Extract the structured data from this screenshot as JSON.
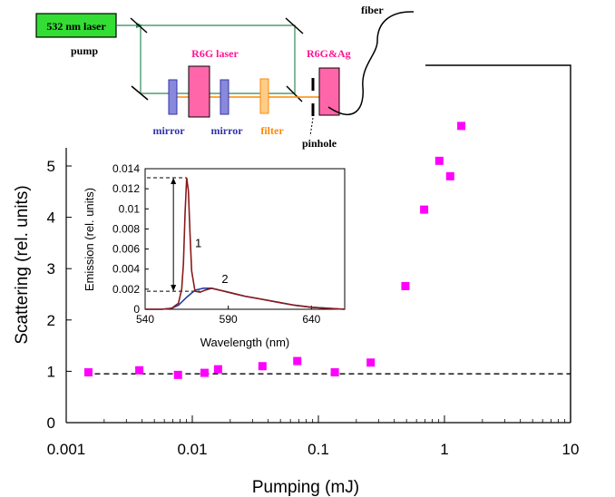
{
  "chart_data": [
    {
      "type": "scatter",
      "title": "",
      "xlabel": "Pumping (mJ)",
      "ylabel": "Scattering (rel. units)",
      "x_scale": "log",
      "xlim": [
        0.001,
        10
      ],
      "ylim": [
        0,
        6
      ],
      "x_tick_labels": [
        "0.001",
        "0.01",
        "0.1",
        "1",
        "10"
      ],
      "y_tick_labels": [
        "0",
        "1",
        "2",
        "3",
        "4",
        "5"
      ],
      "series": [
        {
          "color": "#ff00ff",
          "x": [
            0.0015,
            0.0038,
            0.0077,
            0.0125,
            0.016,
            0.036,
            0.068,
            0.135,
            0.26,
            0.49,
            0.69,
            0.91,
            1.11,
            1.36
          ],
          "y": [
            0.98,
            1.02,
            0.93,
            0.97,
            1.04,
            1.1,
            1.2,
            0.98,
            1.17,
            2.66,
            4.15,
            5.1,
            4.8,
            5.78
          ]
        }
      ],
      "reference_line": {
        "y": 0.95,
        "style": "dashed",
        "color": "#000000"
      },
      "grid": false
    },
    {
      "type": "line",
      "title": "",
      "xlabel": "Wavelength (nm)",
      "ylabel": "Emission (rel. units)",
      "xlim": [
        540,
        660
      ],
      "ylim": [
        0,
        0.014
      ],
      "x_tick_labels": [
        "540",
        "590",
        "640"
      ],
      "y_tick_labels": [
        "0",
        "0.002",
        "0.004",
        "0.006",
        "0.008",
        "0.01",
        "0.012",
        "0.014"
      ],
      "series": [
        {
          "label": "1",
          "color": "#8b1a1a",
          "x": [
            540,
            550,
            556,
            560,
            562,
            563,
            564,
            565,
            566,
            567,
            568,
            570,
            573,
            576,
            580,
            585,
            590,
            600,
            610,
            620,
            630,
            640,
            650,
            660
          ],
          "y": [
            0.0,
            0.0,
            0.0001,
            0.0006,
            0.002,
            0.0045,
            0.0095,
            0.0131,
            0.0118,
            0.0075,
            0.0038,
            0.0018,
            0.0017,
            0.0019,
            0.0021,
            0.0019,
            0.0017,
            0.0013,
            0.001,
            0.0007,
            0.0004,
            0.0002,
            0.0001,
            0.0
          ]
        },
        {
          "label": "2",
          "color": "#1f3fa8",
          "x": [
            540,
            550,
            556,
            560,
            565,
            570,
            575,
            580,
            585,
            590,
            600,
            610,
            620,
            630,
            640,
            650,
            660
          ],
          "y": [
            0.0,
            0.0,
            0.0001,
            0.0004,
            0.0012,
            0.0019,
            0.0021,
            0.0021,
            0.0019,
            0.0017,
            0.0013,
            0.001,
            0.0007,
            0.0004,
            0.0002,
            0.0001,
            0.0
          ]
        }
      ],
      "annotations": [
        "1",
        "2"
      ]
    }
  ],
  "diagram": {
    "laser_label": "532 nm laser",
    "pump_label": "pump",
    "r6g_laser_label": "R6G laser",
    "sample_label": "R6G&Ag",
    "fiber_label": "fiber",
    "mirror_label_1": "mirror",
    "mirror_label_2": "mirror",
    "filter_label": "filter",
    "pinhole_label": "pinhole",
    "colors": {
      "laser_box": "#33dd33",
      "pink": "#ff66aa",
      "blue": "#3333aa",
      "orange": "#ff8800",
      "green_beam": "#2e8b57"
    }
  }
}
